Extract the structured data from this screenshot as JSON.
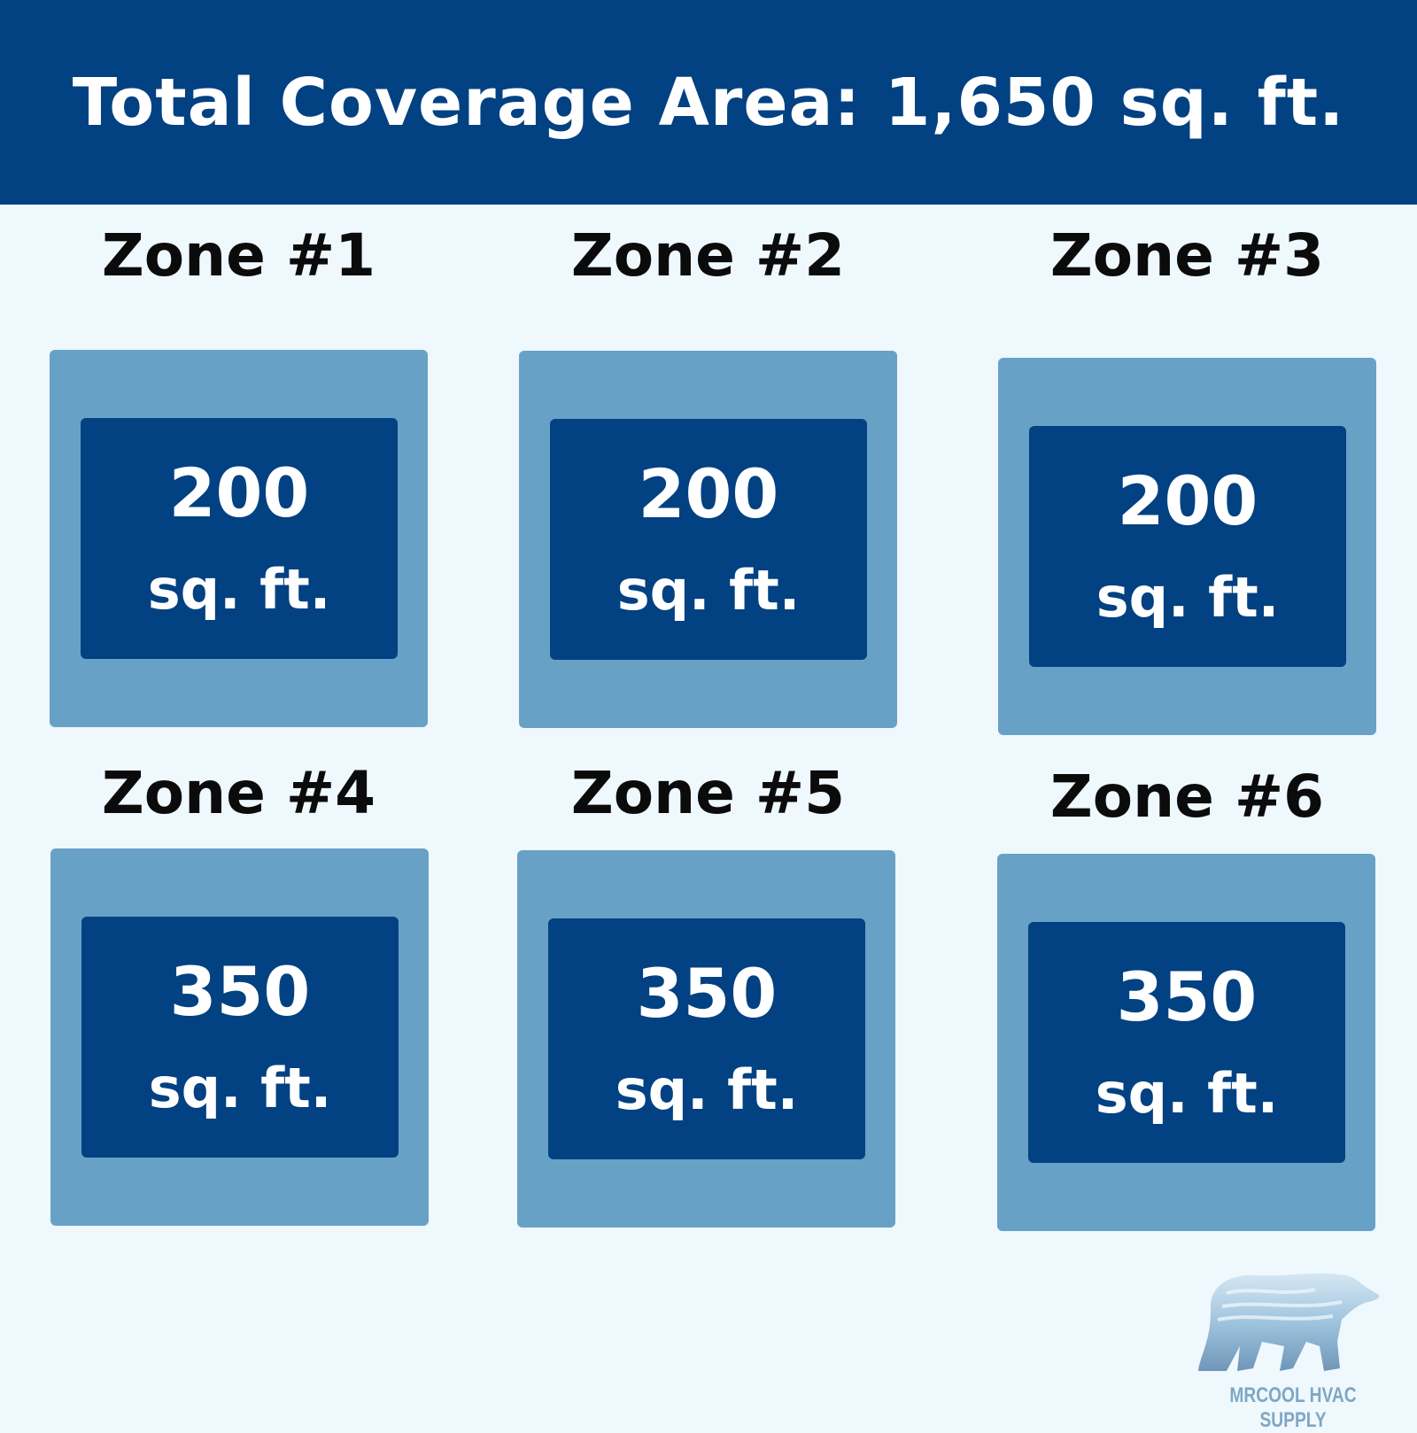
{
  "header": {
    "title": "Total Coverage Area: 1,650 sq. ft."
  },
  "zones": [
    {
      "label": "Zone #1",
      "value": "200",
      "unit": "sq. ft."
    },
    {
      "label": "Zone #2",
      "value": "200",
      "unit": "sq. ft."
    },
    {
      "label": "Zone #3",
      "value": "200",
      "unit": "sq. ft."
    },
    {
      "label": "Zone #4",
      "value": "350",
      "unit": "sq. ft."
    },
    {
      "label": "Zone #5",
      "value": "350",
      "unit": "sq. ft."
    },
    {
      "label": "Zone #6",
      "value": "350",
      "unit": "sq. ft."
    }
  ],
  "logo": {
    "text": "MRCOOL HVAC SUPPLY",
    "icon": "polar-bear-icon"
  },
  "colors": {
    "header": "#024182",
    "background": "#eff8fd",
    "outer_box": "#68a1c6",
    "inner_box": "#024182"
  }
}
